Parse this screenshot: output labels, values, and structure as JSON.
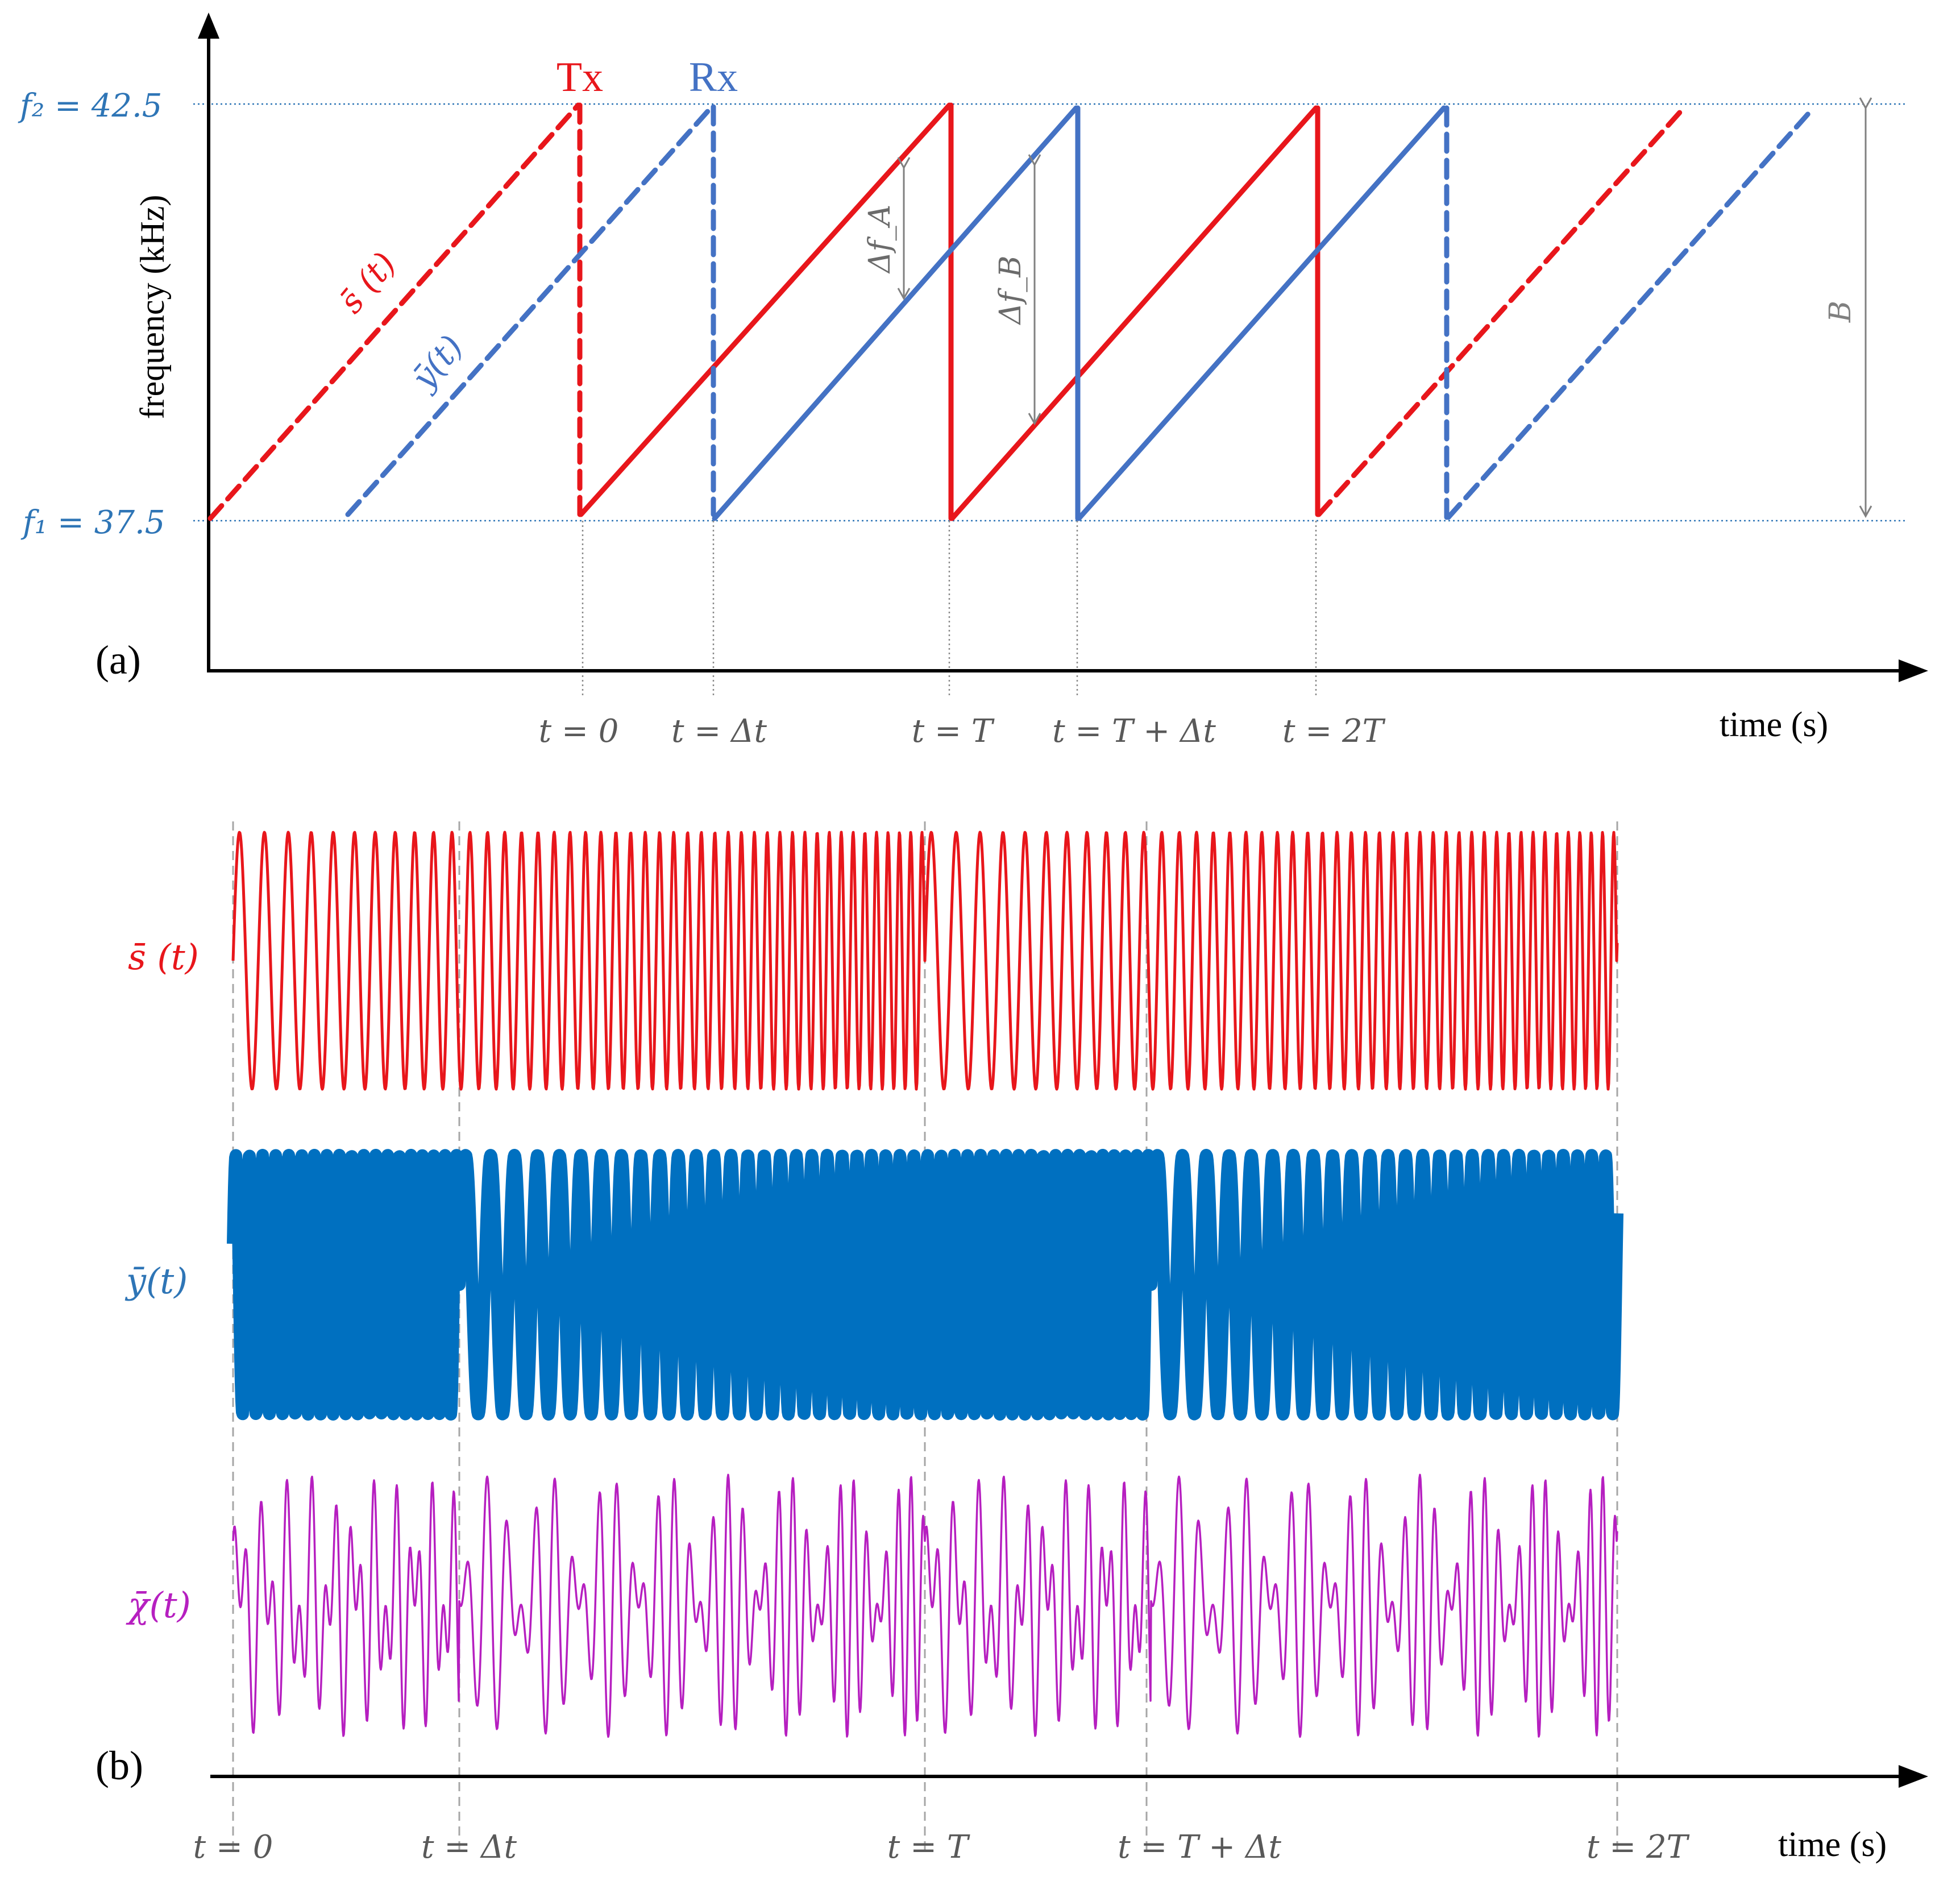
{
  "panel_a": {
    "label": "(a)",
    "y_axis_label": "frequency (kHz)",
    "x_axis_label": "time (s)",
    "f2_label": "f₂ = 42.5",
    "f1_label": "f₁ = 37.5",
    "tx_label": "Tx",
    "rx_label": "Rx",
    "s_label": "s̄ (t)",
    "y_label": "ȳ(t)",
    "delta_fa_label": "Δf_A",
    "delta_fb_label": "Δf_B",
    "b_label": "B",
    "ticks": [
      "t = 0",
      "t = Δt",
      "t = T",
      "t = T + Δt",
      "t = 2T"
    ],
    "f_low_khz": 37.5,
    "f_high_khz": 42.5
  },
  "panel_b": {
    "label": "(b)",
    "x_axis_label": "time (s)",
    "s_label": "s̄ (t)",
    "y_label": "ȳ(t)",
    "chi_label": "χ̄(t)",
    "ticks": [
      "t = 0",
      "t = Δt",
      "t = T",
      "t = T + Δt",
      "t = 2T"
    ]
  },
  "colors": {
    "tx": "#e8161b",
    "rx": "#4472c4",
    "rx_wave": "#0070c0",
    "mix": "#b61fc0",
    "axis": "#000000",
    "annot": "#808080",
    "f_label": "#2e75b6"
  }
}
